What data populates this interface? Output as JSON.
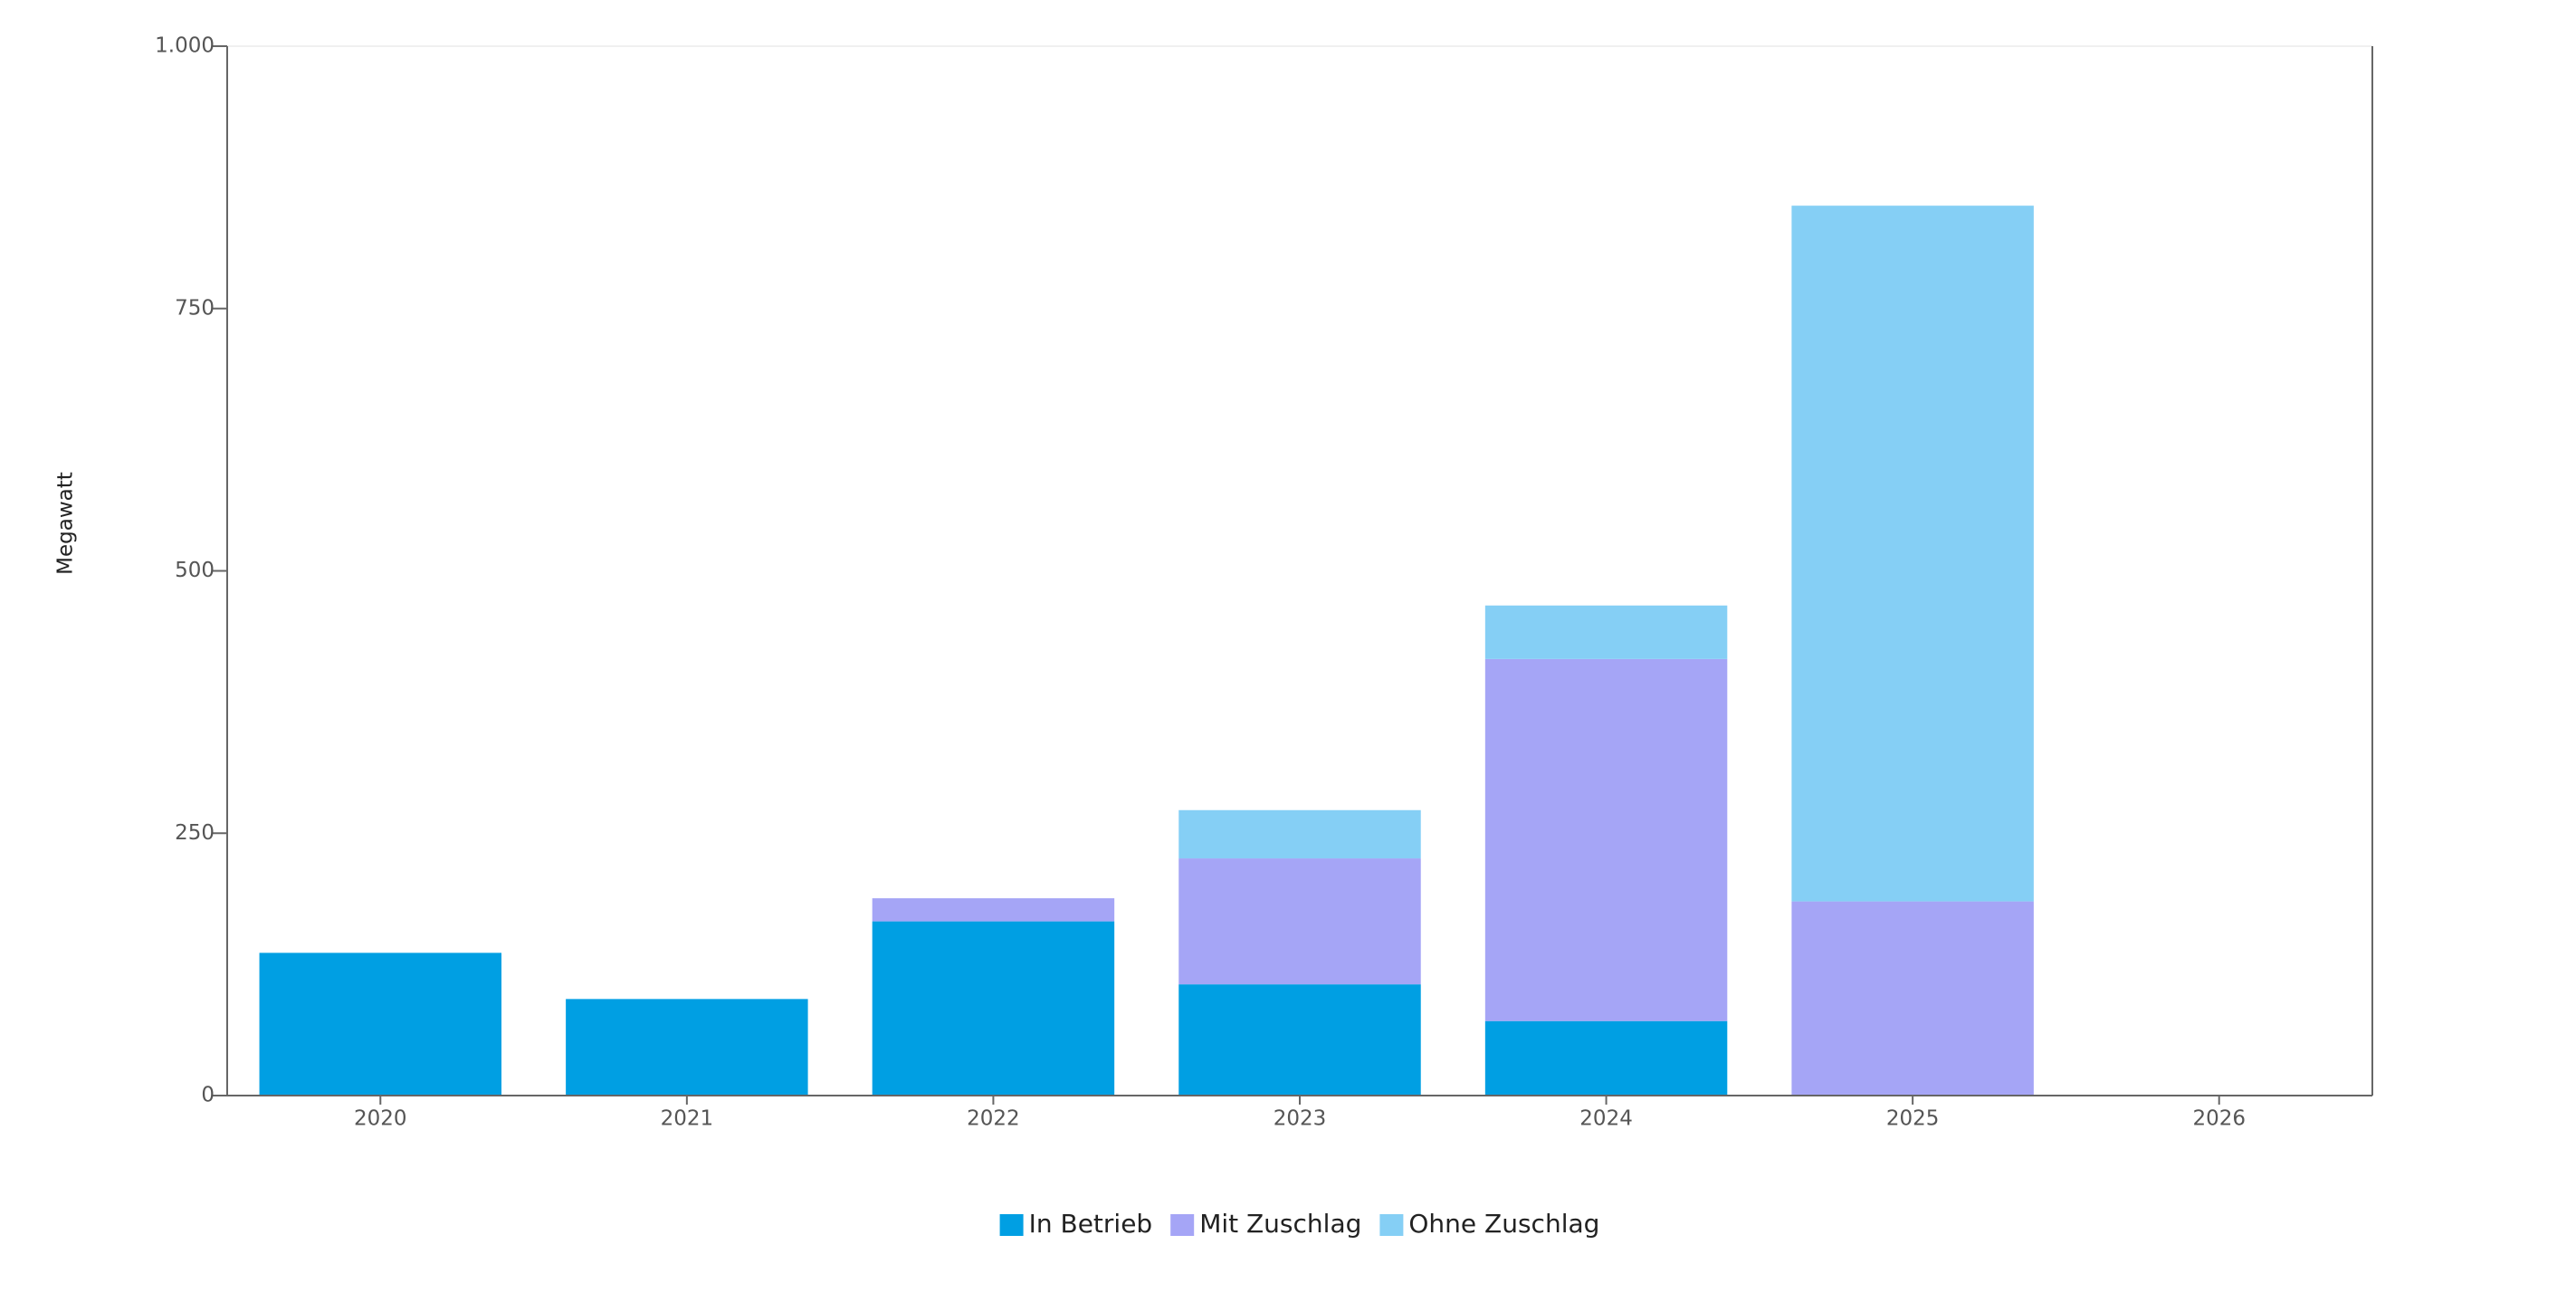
{
  "chart_data": {
    "type": "stacked-bar",
    "y_axis_label": "Megawatt",
    "categories": [
      "2020",
      "2021",
      "2022",
      "2023",
      "2024",
      "2025",
      "2026"
    ],
    "series": [
      {
        "name": "In Betrieb",
        "color": "#009fe3",
        "values": [
          136,
          92,
          166,
          106,
          71,
          0,
          0
        ]
      },
      {
        "name": "Mit Zuschlag",
        "color": "#a5a5f6",
        "values": [
          0,
          0,
          22,
          120,
          345,
          185,
          0
        ]
      },
      {
        "name": "Ohne Zuschlag",
        "color": "#85cff5",
        "values": [
          0,
          0,
          0,
          46,
          51,
          663,
          0
        ]
      }
    ],
    "ylim": [
      0,
      1000
    ],
    "yticks": [
      0,
      250,
      500,
      750,
      {
        "value": 1000,
        "label": "1.000"
      }
    ],
    "legend": "bottom"
  }
}
